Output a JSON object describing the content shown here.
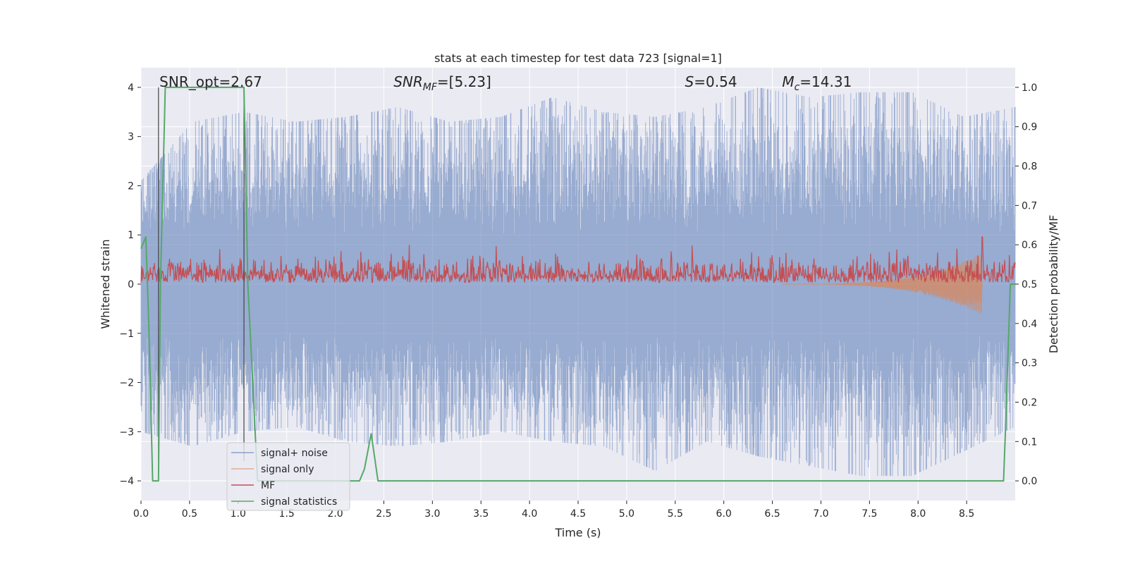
{
  "chart_data": {
    "type": "line",
    "title": "stats at each timestep for test data 723 [signal=1]",
    "xlabel": "Time (s)",
    "ylabel": "Whitened strain",
    "ylabel_right": "Detection probability/MF",
    "xlim": [
      0.0,
      9.0
    ],
    "ylim": [
      -4.4,
      4.4
    ],
    "ylim_right": [
      -0.05,
      1.05
    ],
    "xticks": [
      "0.0",
      "0.5",
      "1.0",
      "1.5",
      "2.0",
      "2.5",
      "3.0",
      "3.5",
      "4.0",
      "4.5",
      "5.0",
      "5.5",
      "6.0",
      "6.5",
      "7.0",
      "7.5",
      "8.0",
      "8.5"
    ],
    "xtick_values": [
      0.0,
      0.5,
      1.0,
      1.5,
      2.0,
      2.5,
      3.0,
      3.5,
      4.0,
      4.5,
      5.0,
      5.5,
      6.0,
      6.5,
      7.0,
      7.5,
      8.0,
      8.5
    ],
    "yticks": [
      "−4",
      "−3",
      "−2",
      "−1",
      "0",
      "1",
      "2",
      "3",
      "4"
    ],
    "ytick_values": [
      -4,
      -3,
      -2,
      -1,
      0,
      1,
      2,
      3,
      4
    ],
    "yticks_right": [
      "0.0",
      "0.1",
      "0.2",
      "0.3",
      "0.4",
      "0.5",
      "0.6",
      "0.7",
      "0.8",
      "0.9",
      "1.0"
    ],
    "ytick_values_right": [
      0.0,
      0.1,
      0.2,
      0.3,
      0.4,
      0.5,
      0.6,
      0.7,
      0.8,
      0.9,
      1.0
    ],
    "grid": true,
    "legend_position": "lower-left",
    "annotations": [
      {
        "parts": [
          {
            "t": "SNR_opt=2.67",
            "i": false
          }
        ],
        "x": 0.19
      },
      {
        "parts": [
          {
            "t": "SNR",
            "i": true
          },
          {
            "t": "MF",
            "i": true,
            "sub": true
          },
          {
            "t": "=[5.23]",
            "i": false
          }
        ],
        "x": 2.6
      },
      {
        "parts": [
          {
            "t": "S",
            "i": true
          },
          {
            "t": "=0.54",
            "i": false
          }
        ],
        "x": 5.6
      },
      {
        "parts": [
          {
            "t": "M",
            "i": true
          },
          {
            "t": "c",
            "i": true,
            "sub": true
          },
          {
            "t": "=14.31",
            "i": false
          }
        ],
        "x": 6.6
      }
    ],
    "vertical_lines_x": [
      0.18,
      1.06
    ],
    "series": [
      {
        "name": "signal+ noise",
        "color": "#4c72b0",
        "axis": "left",
        "kind": "noise",
        "x_range": [
          0.0,
          9.0
        ],
        "approx_upper_envelope": [
          2.1,
          3.3,
          3.5,
          3.3,
          3.4,
          3.6,
          3.3,
          3.4,
          3.8,
          3.5,
          3.4,
          3.6,
          4.0,
          3.8,
          3.9,
          3.9,
          3.4,
          3.6
        ],
        "approx_lower_envelope": [
          -3.0,
          -3.3,
          -3.0,
          -2.9,
          -3.2,
          -3.3,
          -3.2,
          -3.0,
          -3.2,
          -3.3,
          -3.8,
          -3.2,
          -3.5,
          -3.7,
          -3.9,
          -3.9,
          -3.4,
          -2.9
        ]
      },
      {
        "name": "signal only",
        "color": "#dd8452",
        "axis": "left",
        "kind": "chirp",
        "x_range": [
          6.6,
          8.66
        ],
        "y_end_min": -0.62
      },
      {
        "name": "MF",
        "color": "#c44e52",
        "axis": "right",
        "kind": "mf",
        "x_range": [
          0.0,
          9.0
        ],
        "typical_range": [
          0.5,
          0.58
        ],
        "peaks": [
          {
            "x": 2.76,
            "y": 0.6
          },
          {
            "x": 8.4,
            "y": 0.59
          },
          {
            "x": 8.66,
            "y": 0.62
          }
        ]
      },
      {
        "name": "signal statistics",
        "color": "#55a868",
        "axis": "right",
        "kind": "step",
        "x": [
          0.0,
          0.05,
          0.08,
          0.12,
          0.18,
          0.2,
          0.25,
          1.06,
          1.1,
          1.14,
          1.2,
          2.25,
          2.3,
          2.37,
          2.44,
          8.88,
          8.9,
          8.95,
          9.0
        ],
        "y": [
          0.59,
          0.62,
          0.4,
          0.0,
          0.0,
          0.5,
          1.0,
          1.0,
          0.5,
          0.3,
          0.0,
          0.0,
          0.03,
          0.12,
          0.0,
          0.0,
          0.13,
          0.5,
          0.5
        ]
      }
    ]
  }
}
